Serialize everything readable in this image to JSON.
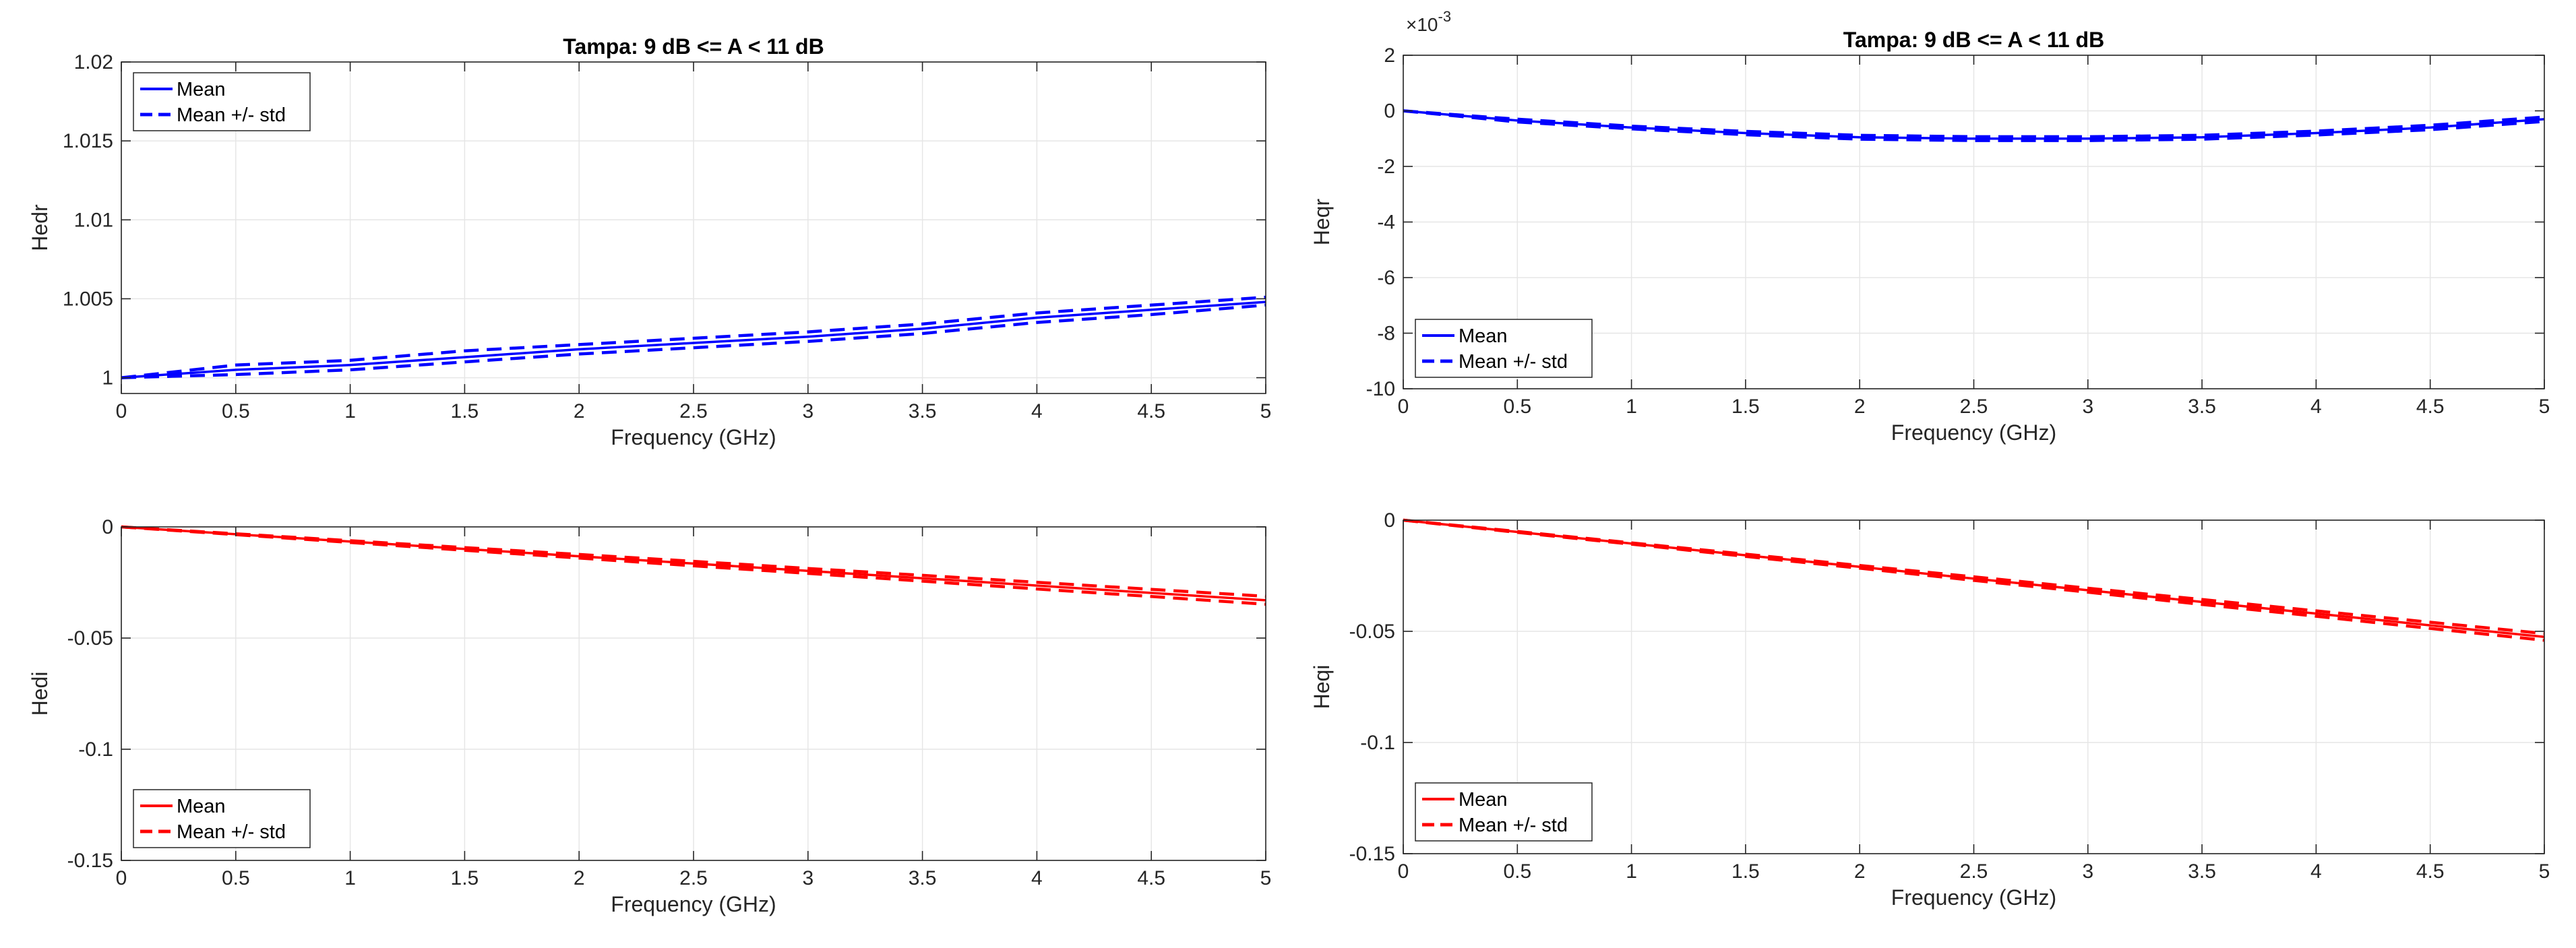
{
  "chart_data": [
    {
      "type": "line",
      "id": "hedr",
      "title": "Tampa: 9 dB <= A < 11 dB",
      "xlabel": "Frequency (GHz)",
      "ylabel": "Hedr",
      "xlim": [
        0,
        5
      ],
      "ylim": [
        0.999,
        1.02
      ],
      "xticks": [
        0,
        0.5,
        1,
        1.5,
        2,
        2.5,
        3,
        3.5,
        4,
        4.5,
        5
      ],
      "xtick_labels": [
        "0",
        "0.5",
        "1",
        "1.5",
        "2",
        "2.5",
        "3",
        "3.5",
        "4",
        "4.5",
        "5"
      ],
      "yticks": [
        1,
        1.005,
        1.01,
        1.015,
        1.02
      ],
      "ytick_labels": [
        "1",
        "1.005",
        "1.01",
        "1.015",
        "1.02"
      ],
      "exponent_label": "",
      "grid": true,
      "color": "#0000ff",
      "legend": {
        "location": "top-left",
        "entries": [
          "Mean",
          "Mean +/- std"
        ]
      },
      "x": [
        0,
        0.5,
        1,
        1.5,
        2,
        2.5,
        3,
        3.5,
        4,
        4.5,
        5
      ],
      "series": [
        {
          "name": "Mean",
          "style": "solid",
          "values": [
            1.0,
            1.0005,
            1.0008,
            1.0013,
            1.0018,
            1.0022,
            1.0026,
            1.0031,
            1.0038,
            1.0043,
            1.0048
          ]
        },
        {
          "name": "Mean + std",
          "style": "dashed",
          "values": [
            1.0,
            1.0008,
            1.0011,
            1.0017,
            1.0021,
            1.0025,
            1.0029,
            1.0034,
            1.0041,
            1.0046,
            1.0051
          ]
        },
        {
          "name": "Mean - std",
          "style": "dashed",
          "values": [
            1.0,
            1.0002,
            1.0005,
            1.001,
            1.0015,
            1.0019,
            1.0023,
            1.0028,
            1.0035,
            1.004,
            1.0046
          ]
        }
      ]
    },
    {
      "type": "line",
      "id": "heqr",
      "title": "Tampa: 9 dB <= A < 11 dB",
      "xlabel": "Frequency (GHz)",
      "ylabel": "Heqr",
      "xlim": [
        0,
        5
      ],
      "ylim": [
        -10,
        2
      ],
      "xticks": [
        0,
        0.5,
        1,
        1.5,
        2,
        2.5,
        3,
        3.5,
        4,
        4.5,
        5
      ],
      "xtick_labels": [
        "0",
        "0.5",
        "1",
        "1.5",
        "2",
        "2.5",
        "3",
        "3.5",
        "4",
        "4.5",
        "5"
      ],
      "yticks": [
        2,
        0,
        -2,
        -4,
        -6,
        -8,
        -10
      ],
      "ytick_labels": [
        "2",
        "0",
        "-2",
        "-4",
        "-6",
        "-8",
        "-10"
      ],
      "exponent_label": "×10",
      "exponent_power": "-3",
      "grid": true,
      "color": "#0000ff",
      "legend": {
        "location": "bottom-left",
        "entries": [
          "Mean",
          "Mean +/- std"
        ]
      },
      "x": [
        0,
        0.5,
        1,
        1.5,
        2,
        2.5,
        3,
        3.5,
        4,
        4.5,
        5
      ],
      "series": [
        {
          "name": "Mean",
          "style": "solid",
          "values": [
            0,
            -0.35,
            -0.6,
            -0.8,
            -0.95,
            -1.0,
            -1.0,
            -0.95,
            -0.8,
            -0.6,
            -0.3
          ]
        },
        {
          "name": "Mean + std",
          "style": "dashed",
          "values": [
            0,
            -0.3,
            -0.55,
            -0.74,
            -0.88,
            -0.93,
            -0.93,
            -0.88,
            -0.73,
            -0.52,
            -0.22
          ]
        },
        {
          "name": "Mean - std",
          "style": "dashed",
          "values": [
            0,
            -0.4,
            -0.65,
            -0.86,
            -1.02,
            -1.07,
            -1.07,
            -1.02,
            -0.87,
            -0.68,
            -0.38
          ]
        }
      ]
    },
    {
      "type": "line",
      "id": "hedi",
      "title": "",
      "xlabel": "Frequency (GHz)",
      "ylabel": "Hedi",
      "xlim": [
        0,
        5
      ],
      "ylim": [
        -0.15,
        0
      ],
      "xticks": [
        0,
        0.5,
        1,
        1.5,
        2,
        2.5,
        3,
        3.5,
        4,
        4.5,
        5
      ],
      "xtick_labels": [
        "0",
        "0.5",
        "1",
        "1.5",
        "2",
        "2.5",
        "3",
        "3.5",
        "4",
        "4.5",
        "5"
      ],
      "yticks": [
        0,
        -0.05,
        -0.1,
        -0.15
      ],
      "ytick_labels": [
        "0",
        "-0.05",
        "-0.1",
        "-0.15"
      ],
      "exponent_label": "",
      "grid": true,
      "color": "#ff0000",
      "legend": {
        "location": "bottom-left",
        "entries": [
          "Mean",
          "Mean +/- std"
        ]
      },
      "x": [
        0,
        0.5,
        1,
        1.5,
        2,
        2.5,
        3,
        3.5,
        4,
        4.5,
        5
      ],
      "series": [
        {
          "name": "Mean",
          "style": "solid",
          "values": [
            0,
            -0.0033,
            -0.0066,
            -0.0099,
            -0.0132,
            -0.0165,
            -0.0198,
            -0.0231,
            -0.0264,
            -0.0297,
            -0.033
          ]
        },
        {
          "name": "Mean + std",
          "style": "dashed",
          "values": [
            0,
            -0.0031,
            -0.0062,
            -0.0093,
            -0.0124,
            -0.0155,
            -0.0187,
            -0.0218,
            -0.0249,
            -0.0281,
            -0.0312
          ]
        },
        {
          "name": "Mean - std",
          "style": "dashed",
          "values": [
            0,
            -0.0035,
            -0.007,
            -0.0105,
            -0.014,
            -0.0175,
            -0.0209,
            -0.0244,
            -0.0279,
            -0.0313,
            -0.0348
          ]
        }
      ]
    },
    {
      "type": "line",
      "id": "heqi",
      "title": "",
      "xlabel": "Frequency (GHz)",
      "ylabel": "Heqi",
      "xlim": [
        0,
        5
      ],
      "ylim": [
        -0.15,
        0
      ],
      "xticks": [
        0,
        0.5,
        1,
        1.5,
        2,
        2.5,
        3,
        3.5,
        4,
        4.5,
        5
      ],
      "xtick_labels": [
        "0",
        "0.5",
        "1",
        "1.5",
        "2",
        "2.5",
        "3",
        "3.5",
        "4",
        "4.5",
        "5"
      ],
      "yticks": [
        0,
        -0.05,
        -0.1,
        -0.15
      ],
      "ytick_labels": [
        "0",
        "-0.05",
        "-0.1",
        "-0.15"
      ],
      "exponent_label": "",
      "grid": true,
      "color": "#ff0000",
      "legend": {
        "location": "bottom-left",
        "entries": [
          "Mean",
          "Mean +/- std"
        ]
      },
      "x": [
        0,
        0.5,
        1,
        1.5,
        2,
        2.5,
        3,
        3.5,
        4,
        4.5,
        5
      ],
      "series": [
        {
          "name": "Mean",
          "style": "solid",
          "values": [
            0,
            -0.0053,
            -0.0105,
            -0.0158,
            -0.021,
            -0.0263,
            -0.0315,
            -0.0368,
            -0.042,
            -0.0473,
            -0.0525
          ]
        },
        {
          "name": "Mean + std",
          "style": "dashed",
          "values": [
            0,
            -0.0051,
            -0.0102,
            -0.0153,
            -0.0204,
            -0.0255,
            -0.0306,
            -0.0357,
            -0.0408,
            -0.0459,
            -0.051
          ]
        },
        {
          "name": "Mean - std",
          "style": "dashed",
          "values": [
            0,
            -0.0055,
            -0.0108,
            -0.0163,
            -0.0216,
            -0.0271,
            -0.0324,
            -0.0379,
            -0.0432,
            -0.0487,
            -0.054
          ]
        }
      ]
    }
  ]
}
